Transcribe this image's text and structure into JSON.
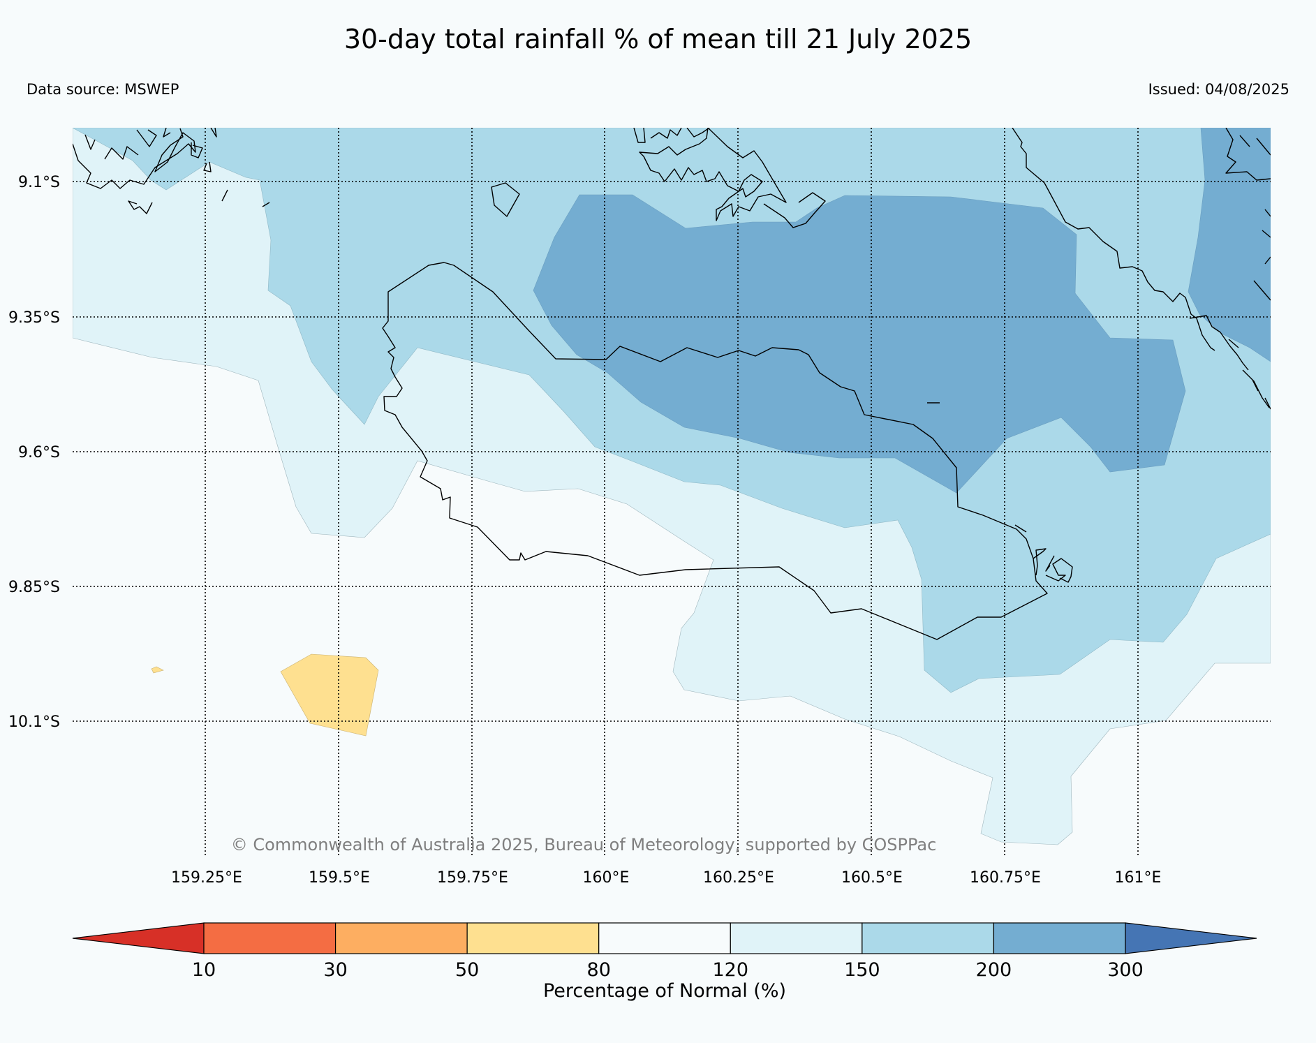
{
  "title": "30-day total rainfall % of mean till 21 July 2025",
  "source": "Data source: MSWEP",
  "issued": "Issued: 04/08/2025",
  "copyright": "© Commonwealth of Australia 2025, Bureau of Meteorology, supported by COSPPac",
  "lat_labels": [
    "9.1°S",
    "9.35°S",
    "9.6°S",
    "9.85°S",
    "10.1°S"
  ],
  "lon_labels": [
    "159.25°E",
    "159.5°E",
    "159.75°E",
    "160°E",
    "160.25°E",
    "160.5°E",
    "160.75°E",
    "161°E"
  ],
  "colorbar": {
    "ticks": [
      "10",
      "30",
      "50",
      "80",
      "120",
      "150",
      "200",
      "300"
    ],
    "title": "Percentage of Normal (%)",
    "colors": [
      "#d73027",
      "#f46d43",
      "#fdae61",
      "#fee090",
      "#f7fbfc",
      "#e0f3f8",
      "#abd9e9",
      "#74add1",
      "#4575b4"
    ]
  },
  "legend_colors": {
    "very_dry": "#fee090",
    "normal": "#f7fbfc",
    "wet": "#e0f3f8",
    "wetter": "#abd9e9",
    "wettest": "#74add1"
  }
}
